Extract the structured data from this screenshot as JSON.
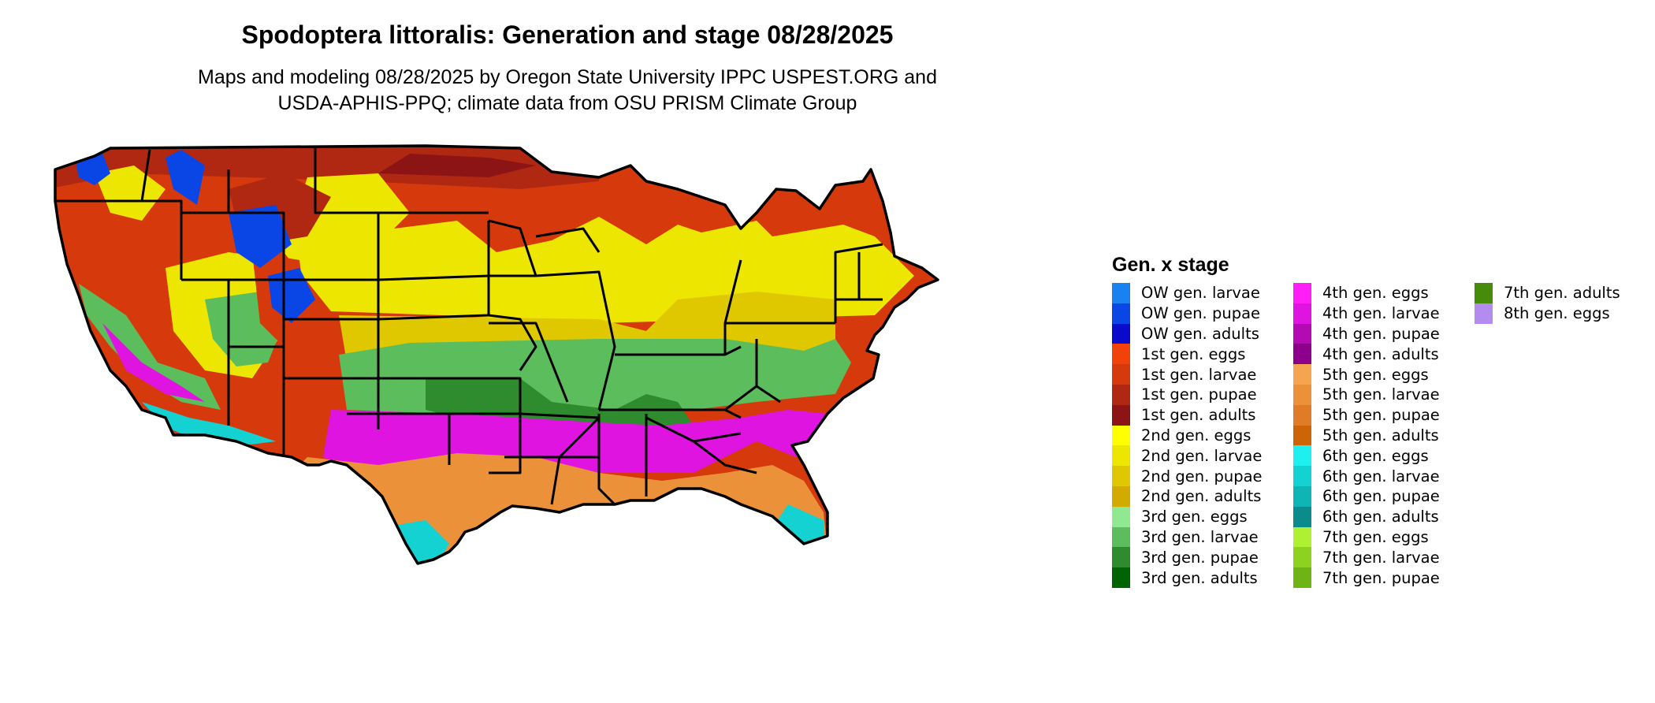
{
  "title": "Spodoptera littoralis: Generation and stage 08/28/2025",
  "subtitle_lines": [
    "Maps and modeling 08/28/2025 by Oregon State University IPPC USPEST.ORG and",
    "USDA-APHIS-PPQ; climate data from OSU PRISM Climate Group"
  ],
  "legend": {
    "title": "Gen. x stage",
    "columns": [
      [
        {
          "label": "OW gen. larvae",
          "color": "#1a82f0"
        },
        {
          "label": "OW gen. pupae",
          "color": "#0a46e6"
        },
        {
          "label": "OW gen. adults",
          "color": "#0a0acd"
        },
        {
          "label": "1st gen. eggs",
          "color": "#f2420a"
        },
        {
          "label": "1st gen. larvae",
          "color": "#d63a0c"
        },
        {
          "label": "1st gen. pupae",
          "color": "#b02812"
        },
        {
          "label": "1st gen. adults",
          "color": "#8c1414"
        },
        {
          "label": "2nd gen. eggs",
          "color": "#ffff00"
        },
        {
          "label": "2nd gen. larvae",
          "color": "#ede600"
        },
        {
          "label": "2nd gen. pupae",
          "color": "#e0c800"
        },
        {
          "label": "2nd gen. adults",
          "color": "#d2aa00"
        },
        {
          "label": "3rd gen. eggs",
          "color": "#90e890"
        },
        {
          "label": "3rd gen. larvae",
          "color": "#5cbd5c"
        },
        {
          "label": "3rd gen. pupae",
          "color": "#2e8c2e"
        },
        {
          "label": "3rd gen. adults",
          "color": "#006400"
        }
      ],
      [
        {
          "label": "4th gen. eggs",
          "color": "#ff1ef5"
        },
        {
          "label": "4th gen. larvae",
          "color": "#e014e0"
        },
        {
          "label": "4th gen. pupae",
          "color": "#b40ab4"
        },
        {
          "label": "4th gen. adults",
          "color": "#8c008c"
        },
        {
          "label": "5th gen. eggs",
          "color": "#f5a550"
        },
        {
          "label": "5th gen. larvae",
          "color": "#eb913a"
        },
        {
          "label": "5th gen. pupae",
          "color": "#e07b28"
        },
        {
          "label": "5th gen. adults",
          "color": "#cd6405"
        },
        {
          "label": "6th gen. eggs",
          "color": "#1ef0f0"
        },
        {
          "label": "6th gen. larvae",
          "color": "#14d2d2"
        },
        {
          "label": "6th gen. pupae",
          "color": "#0fb4b4"
        },
        {
          "label": "6th gen. adults",
          "color": "#0a8c8c"
        },
        {
          "label": "7th gen. eggs",
          "color": "#aff032"
        },
        {
          "label": "7th gen. larvae",
          "color": "#8cd21e"
        },
        {
          "label": "7th gen. pupae",
          "color": "#6eb414"
        }
      ],
      [
        {
          "label": "7th gen. adults",
          "color": "#468c0a"
        },
        {
          "label": "8th gen. eggs",
          "color": "#b48cf0"
        }
      ]
    ]
  }
}
